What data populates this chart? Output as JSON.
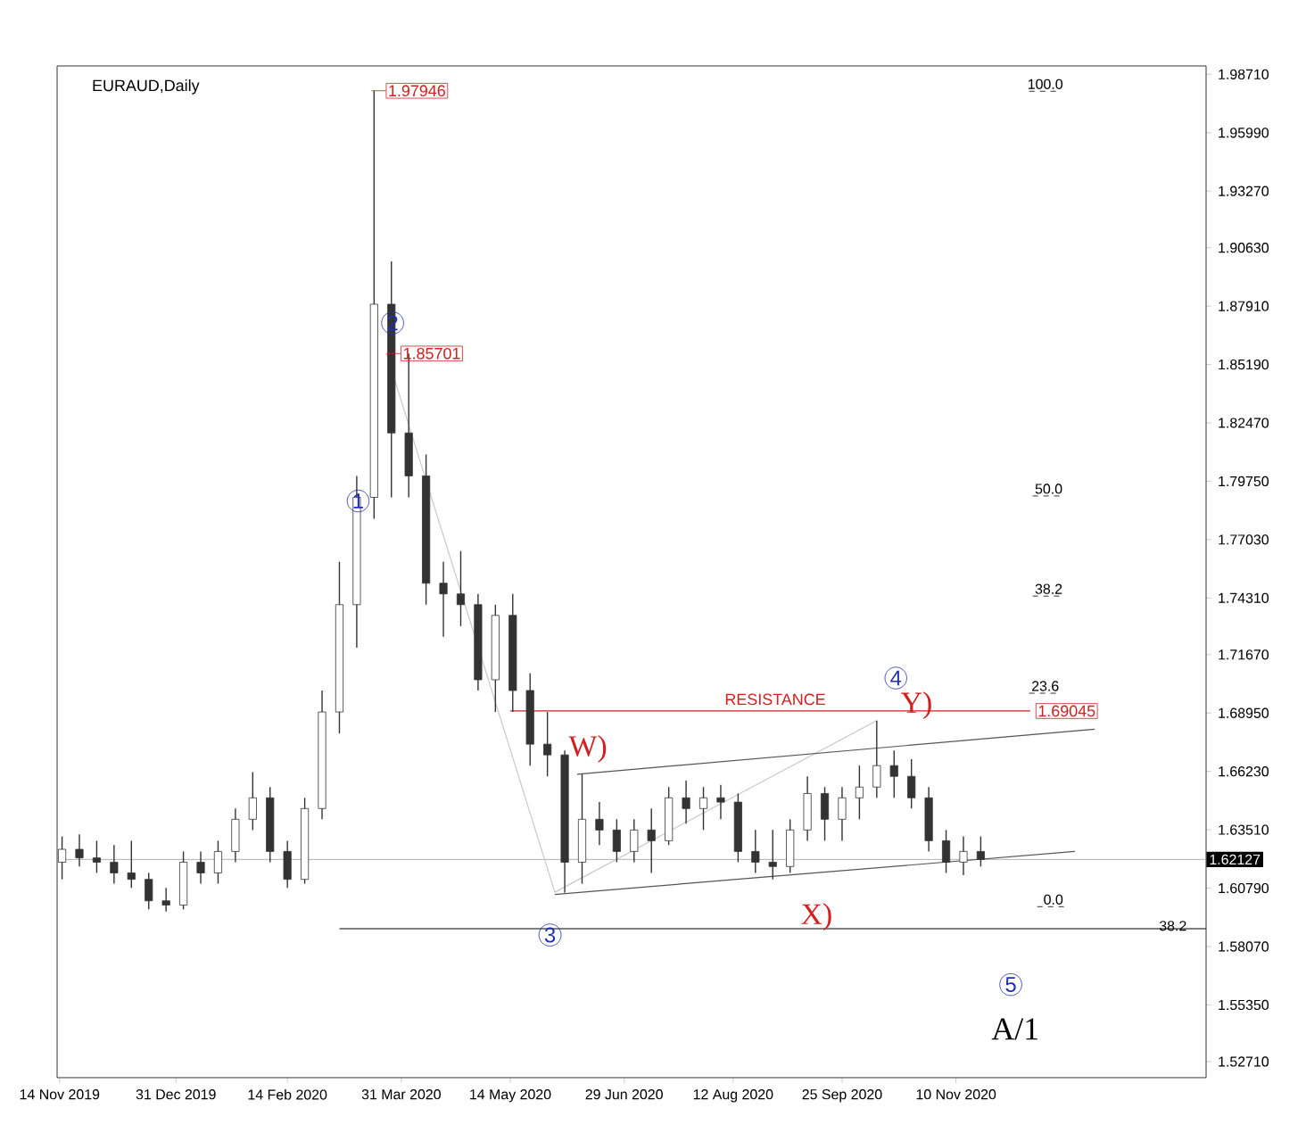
{
  "chart_data": {
    "type": "candlestick",
    "title": "EURAUD,Daily",
    "color": "#333333",
    "x": [
      "2019-11-15",
      "2019-11-22",
      "2019-11-29",
      "2019-12-06",
      "2019-12-13",
      "2019-12-20",
      "2019-12-27",
      "2020-01-03",
      "2020-01-10",
      "2020-01-17",
      "2020-01-24",
      "2020-01-31",
      "2020-02-07",
      "2020-02-14",
      "2020-02-21",
      "2020-02-28",
      "2020-03-06",
      "2020-03-13",
      "2020-03-20",
      "2020-03-27",
      "2020-04-03",
      "2020-04-10",
      "2020-04-17",
      "2020-04-24",
      "2020-05-01",
      "2020-05-08",
      "2020-05-15",
      "2020-05-22",
      "2020-05-29",
      "2020-06-05",
      "2020-06-12",
      "2020-06-19",
      "2020-06-26",
      "2020-07-03",
      "2020-07-10",
      "2020-07-17",
      "2020-07-24",
      "2020-07-31",
      "2020-08-07",
      "2020-08-14",
      "2020-08-21",
      "2020-08-28",
      "2020-09-04",
      "2020-09-11",
      "2020-09-18",
      "2020-09-25",
      "2020-10-02",
      "2020-10-09",
      "2020-10-16",
      "2020-10-23",
      "2020-10-30",
      "2020-11-06",
      "2020-11-13",
      "2020-11-20"
    ],
    "ohlc": [
      [
        1.62,
        1.632,
        1.612,
        1.626
      ],
      [
        1.626,
        1.633,
        1.618,
        1.622
      ],
      [
        1.622,
        1.63,
        1.615,
        1.62
      ],
      [
        1.62,
        1.628,
        1.61,
        1.615
      ],
      [
        1.615,
        1.63,
        1.608,
        1.612
      ],
      [
        1.612,
        1.615,
        1.598,
        1.602
      ],
      [
        1.602,
        1.608,
        1.597,
        1.6
      ],
      [
        1.6,
        1.625,
        1.598,
        1.62
      ],
      [
        1.62,
        1.625,
        1.61,
        1.615
      ],
      [
        1.615,
        1.63,
        1.61,
        1.625
      ],
      [
        1.625,
        1.645,
        1.62,
        1.64
      ],
      [
        1.64,
        1.662,
        1.635,
        1.65
      ],
      [
        1.65,
        1.655,
        1.62,
        1.625
      ],
      [
        1.625,
        1.63,
        1.608,
        1.612
      ],
      [
        1.612,
        1.65,
        1.61,
        1.645
      ],
      [
        1.645,
        1.7,
        1.64,
        1.69
      ],
      [
        1.69,
        1.76,
        1.68,
        1.74
      ],
      [
        1.74,
        1.8,
        1.72,
        1.79
      ],
      [
        1.79,
        1.97946,
        1.78,
        1.88
      ],
      [
        1.88,
        1.9,
        1.79,
        1.82
      ],
      [
        1.82,
        1.857,
        1.79,
        1.8
      ],
      [
        1.8,
        1.81,
        1.74,
        1.75
      ],
      [
        1.75,
        1.76,
        1.725,
        1.745
      ],
      [
        1.745,
        1.765,
        1.73,
        1.74
      ],
      [
        1.74,
        1.745,
        1.7,
        1.705
      ],
      [
        1.705,
        1.74,
        1.69,
        1.735
      ],
      [
        1.735,
        1.745,
        1.69,
        1.7
      ],
      [
        1.7,
        1.708,
        1.665,
        1.675
      ],
      [
        1.675,
        1.69,
        1.66,
        1.67
      ],
      [
        1.67,
        1.672,
        1.6057,
        1.62
      ],
      [
        1.62,
        1.661,
        1.61,
        1.64
      ],
      [
        1.64,
        1.648,
        1.628,
        1.635
      ],
      [
        1.635,
        1.64,
        1.62,
        1.625
      ],
      [
        1.625,
        1.64,
        1.62,
        1.635
      ],
      [
        1.635,
        1.645,
        1.615,
        1.63
      ],
      [
        1.63,
        1.655,
        1.628,
        1.65
      ],
      [
        1.65,
        1.658,
        1.638,
        1.645
      ],
      [
        1.645,
        1.655,
        1.635,
        1.65
      ],
      [
        1.65,
        1.656,
        1.64,
        1.648
      ],
      [
        1.648,
        1.652,
        1.62,
        1.625
      ],
      [
        1.625,
        1.635,
        1.615,
        1.62
      ],
      [
        1.62,
        1.635,
        1.612,
        1.618
      ],
      [
        1.618,
        1.64,
        1.615,
        1.635
      ],
      [
        1.635,
        1.66,
        1.63,
        1.652
      ],
      [
        1.652,
        1.655,
        1.63,
        1.64
      ],
      [
        1.64,
        1.655,
        1.63,
        1.65
      ],
      [
        1.65,
        1.665,
        1.64,
        1.655
      ],
      [
        1.655,
        1.686,
        1.65,
        1.665
      ],
      [
        1.665,
        1.672,
        1.65,
        1.66
      ],
      [
        1.66,
        1.668,
        1.645,
        1.65
      ],
      [
        1.65,
        1.655,
        1.625,
        1.63
      ],
      [
        1.63,
        1.635,
        1.615,
        1.62
      ],
      [
        1.62,
        1.632,
        1.614,
        1.625
      ],
      [
        1.625,
        1.632,
        1.618,
        1.62127
      ]
    ],
    "series": [
      {
        "type": "line",
        "color": "#c8c8c8",
        "x": [
          "2020-03-25",
          "2020-06-01",
          "2020-10-09"
        ],
        "values": [
          1.85701,
          1.606,
          1.686
        ]
      },
      {
        "type": "line",
        "color": "#555555",
        "x": [
          "2020-06-10",
          "2021-01-05"
        ],
        "values": [
          1.661,
          1.682
        ]
      },
      {
        "type": "line",
        "color": "#555555",
        "x": [
          "2020-06-01",
          "2020-12-28"
        ],
        "values": [
          1.605,
          1.625
        ]
      },
      {
        "type": "line",
        "color": "#d02020",
        "x": [
          "2020-05-14",
          "2020-12-10"
        ],
        "values": [
          1.69045,
          1.69045
        ]
      },
      {
        "type": "line",
        "color": "#000000",
        "x": [
          "2020-03-06",
          "2021-02-19"
        ],
        "values": [
          1.589,
          1.589
        ]
      }
    ],
    "ref_lines": [
      {
        "axis": "y",
        "value": 1.62127,
        "label": "1.62127",
        "color": "#a0a0a0"
      }
    ],
    "xlim": [
      "2019-11-13",
      "2021-02-19"
    ],
    "ylim": [
      1.5196,
      1.991
    ],
    "xticks": [
      {
        "value": "2019-11-14",
        "label": "14 Nov 2019"
      },
      {
        "value": "2019-12-31",
        "label": "31 Dec 2019"
      },
      {
        "value": "2020-02-14",
        "label": "14 Feb 2020"
      },
      {
        "value": "2020-03-31",
        "label": "31 Mar 2020"
      },
      {
        "value": "2020-05-14",
        "label": "14 May 2020"
      },
      {
        "value": "2020-06-29",
        "label": "29 Jun 2020"
      },
      {
        "value": "2020-08-12",
        "label": "12 Aug 2020"
      },
      {
        "value": "2020-09-25",
        "label": "25 Sep 2020"
      },
      {
        "value": "2020-11-10",
        "label": "10 Nov 2020"
      }
    ],
    "yticks": [
      {
        "value": 1.9871,
        "label": "1.98710"
      },
      {
        "value": 1.9599,
        "label": "1.95990"
      },
      {
        "value": 1.9327,
        "label": "1.93270"
      },
      {
        "value": 1.9063,
        "label": "1.90630"
      },
      {
        "value": 1.8791,
        "label": "1.87910"
      },
      {
        "value": 1.8519,
        "label": "1.85190"
      },
      {
        "value": 1.8247,
        "label": "1.82470"
      },
      {
        "value": 1.7975,
        "label": "1.79750"
      },
      {
        "value": 1.7703,
        "label": "1.77030"
      },
      {
        "value": 1.7431,
        "label": "1.74310"
      },
      {
        "value": 1.7167,
        "label": "1.71670"
      },
      {
        "value": 1.6895,
        "label": "1.68950"
      },
      {
        "value": 1.6623,
        "label": "1.66230"
      },
      {
        "value": 1.6351,
        "label": "1.63510"
      },
      {
        "value": 1.6079,
        "label": "1.60790"
      },
      {
        "value": 1.5807,
        "label": "1.58070"
      },
      {
        "value": 1.5535,
        "label": "1.55350"
      },
      {
        "value": 1.5271,
        "label": "1.52710"
      }
    ],
    "annotations": [
      "1",
      "2",
      "3",
      "4",
      "5",
      "W)",
      "X)",
      "Y)",
      "A/1",
      "RESISTANCE",
      {
        "text": "1.97946",
        "x": "2020-03-19",
        "y": 1.97946
      },
      {
        "text": "1.85701",
        "x": "2020-03-25",
        "y": 1.85701
      },
      {
        "text": "1.69045",
        "x": "2020-12-10",
        "y": 1.69045
      },
      "100.0",
      "50.0",
      "38.2",
      "23.6",
      "0.0",
      "38.2"
    ]
  }
}
